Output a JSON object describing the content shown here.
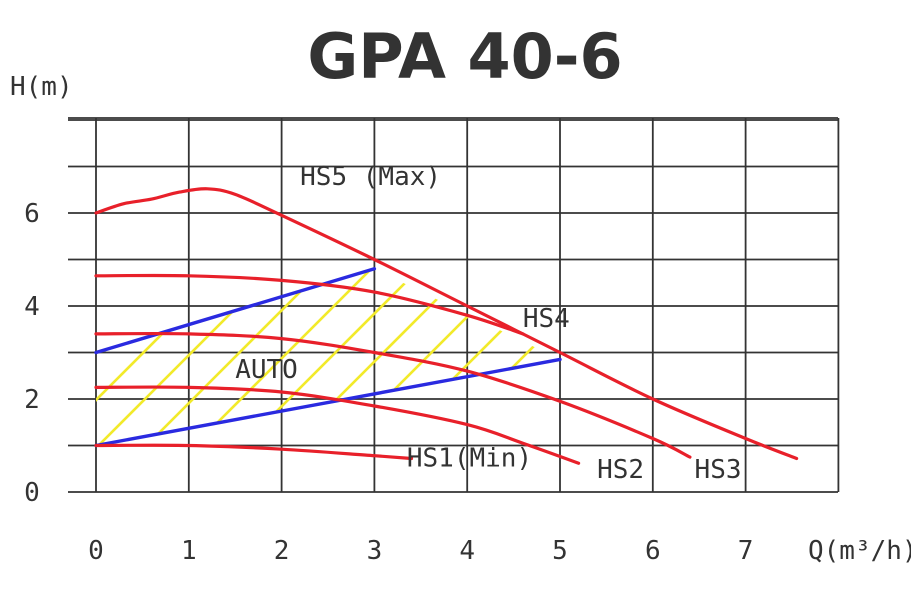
{
  "chart_data": {
    "type": "line",
    "title": "GPA 40-6",
    "xlabel": "Q(m³/h)",
    "ylabel": "H(m)",
    "xlim": [
      0,
      8
    ],
    "ylim": [
      0,
      8
    ],
    "x_ticks": [
      0,
      1,
      2,
      3,
      4,
      5,
      6,
      7
    ],
    "y_ticks": [
      0,
      2,
      4,
      6
    ],
    "grid": true,
    "colors": {
      "curve": "#e8202a",
      "auto_bound": "#2a2ae0",
      "hatch": "#f2ea2a",
      "grid": "#333333"
    },
    "series": [
      {
        "name": "HS5 (Max)",
        "points": [
          [
            0,
            6.0
          ],
          [
            0.3,
            6.2
          ],
          [
            0.6,
            6.3
          ],
          [
            0.9,
            6.45
          ],
          [
            1.2,
            6.52
          ],
          [
            1.5,
            6.4
          ],
          [
            2.0,
            5.95
          ],
          [
            3.0,
            5.0
          ],
          [
            4.0,
            4.0
          ],
          [
            5.0,
            3.0
          ],
          [
            6.0,
            2.0
          ],
          [
            7.0,
            1.15
          ],
          [
            7.55,
            0.72
          ]
        ]
      },
      {
        "name": "HS4",
        "points": [
          [
            0,
            4.65
          ],
          [
            1.0,
            4.65
          ],
          [
            2.0,
            4.55
          ],
          [
            3.0,
            4.3
          ],
          [
            4.0,
            3.8
          ],
          [
            4.6,
            3.4
          ]
        ]
      },
      {
        "name": "HS3",
        "points": [
          [
            0,
            3.4
          ],
          [
            1.0,
            3.4
          ],
          [
            2.0,
            3.3
          ],
          [
            3.0,
            3.0
          ],
          [
            4.0,
            2.6
          ],
          [
            5.0,
            1.95
          ],
          [
            6.0,
            1.15
          ],
          [
            6.4,
            0.75
          ]
        ]
      },
      {
        "name": "HS2",
        "points": [
          [
            0,
            2.25
          ],
          [
            1.0,
            2.25
          ],
          [
            2.0,
            2.15
          ],
          [
            3.0,
            1.85
          ],
          [
            4.0,
            1.45
          ],
          [
            4.6,
            1.05
          ],
          [
            5.2,
            0.62
          ]
        ]
      },
      {
        "name": "HS1(Min)",
        "points": [
          [
            0,
            1.0
          ],
          [
            1.0,
            1.0
          ],
          [
            2.0,
            0.92
          ],
          [
            3.0,
            0.78
          ],
          [
            3.4,
            0.72
          ]
        ]
      }
    ],
    "auto_region": {
      "label": "AUTO",
      "upper": [
        [
          0,
          3.0
        ],
        [
          3.0,
          4.8
        ]
      ],
      "lower": [
        [
          0,
          1.0
        ],
        [
          5.0,
          2.85
        ]
      ],
      "right_edge": [
        [
          3.0,
          4.8
        ],
        [
          5.0,
          2.85
        ]
      ]
    },
    "annotations": [
      {
        "text": "HS5 (Max)",
        "x": 2.2,
        "y": 6.6
      },
      {
        "text": "HS4",
        "x": 4.6,
        "y": 3.55
      },
      {
        "text": "AUTO",
        "x": 1.5,
        "y": 2.45
      },
      {
        "text": "HS1(Min)",
        "x": 3.35,
        "y": 0.55
      },
      {
        "text": "HS2",
        "x": 5.4,
        "y": 0.3
      },
      {
        "text": "HS3",
        "x": 6.45,
        "y": 0.3
      }
    ]
  }
}
